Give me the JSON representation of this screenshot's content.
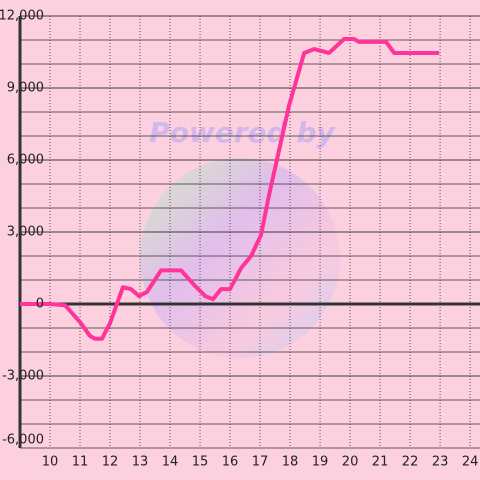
{
  "chart_data": {
    "type": "line",
    "watermark": "Powered by",
    "x": [
      9,
      10,
      10.5,
      11,
      11.33,
      11.5,
      11.73,
      12,
      12.43,
      12.7,
      12.97,
      13.23,
      13.7,
      14.37,
      14.8,
      15.17,
      15.43,
      15.7,
      16,
      16.37,
      16.7,
      17.03,
      17.3,
      17.97,
      18.47,
      18.8,
      19.3,
      19.8,
      20.13,
      20.3,
      21.2,
      21.47,
      22.97
    ],
    "series": [
      {
        "color": "#ff3399",
        "values": [
          0,
          0,
          -50,
          -750,
          -1330,
          -1450,
          -1450,
          -800,
          700,
          620,
          330,
          500,
          1400,
          1400,
          800,
          330,
          200,
          620,
          620,
          1500,
          2000,
          2870,
          4540,
          8290,
          10460,
          10620,
          10460,
          11040,
          11040,
          10920,
          10920,
          10460,
          10460
        ]
      }
    ],
    "xlim": [
      9,
      24.33
    ],
    "xticks": [
      10,
      11,
      12,
      13,
      14,
      15,
      16,
      17,
      18,
      19,
      20,
      21,
      22,
      23,
      24
    ],
    "ylim": [
      -6000,
      12000
    ],
    "yticks": [
      {
        "value": -6000,
        "label": "-6,000"
      },
      {
        "value": -3000,
        "label": "-3,000"
      },
      0,
      {
        "value": 3000,
        "label": "3,000"
      },
      {
        "value": 6000,
        "label": "6,000"
      },
      {
        "value": 9000,
        "label": "9,000"
      },
      {
        "value": 12000,
        "label": "12,000"
      }
    ],
    "ygrid_step": 1000,
    "grid": true
  }
}
